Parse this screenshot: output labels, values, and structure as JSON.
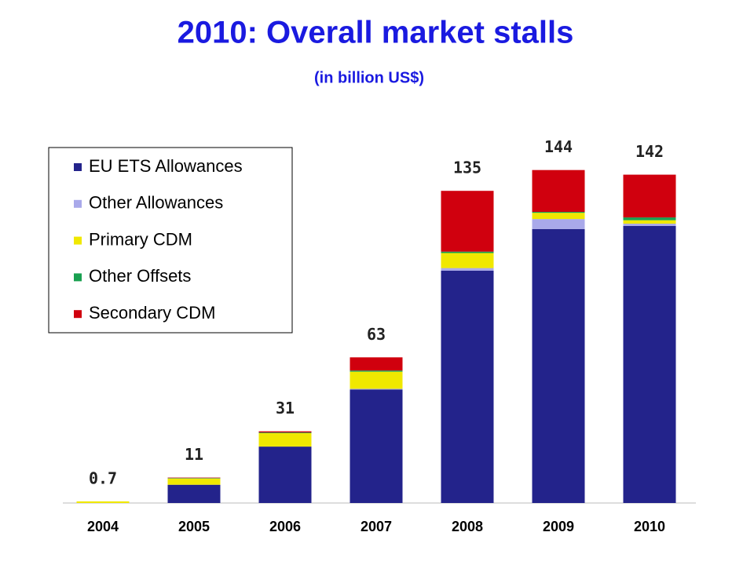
{
  "chart_data": {
    "type": "stacked_bar",
    "title": "2010: Overall market stalls",
    "subtitle": "(in billion US$)",
    "categories": [
      "2004",
      "2005",
      "2006",
      "2007",
      "2008",
      "2009",
      "2010"
    ],
    "series": [
      {
        "name": "EU ETS Allowances",
        "color": "#23238b",
        "values": [
          0,
          7.9,
          24.4,
          49.1,
          100.5,
          118.5,
          119.8
        ]
      },
      {
        "name": "Other Allowances",
        "color": "#a9a9ea",
        "values": [
          0,
          0,
          0,
          0.3,
          1.1,
          4.3,
          1.0
        ]
      },
      {
        "name": "Primary CDM",
        "color": "#f0e800",
        "values": [
          0.7,
          2.7,
          5.8,
          7.4,
          6.5,
          2.7,
          1.5
        ]
      },
      {
        "name": "Other Offsets",
        "color": "#19a050",
        "values": [
          0,
          0.2,
          0.3,
          0.5,
          0.6,
          0.4,
          1.2
        ]
      },
      {
        "name": "Secondary CDM",
        "color": "#d0000e",
        "values": [
          0,
          0.2,
          0.5,
          5.7,
          26.3,
          18.1,
          18.5
        ]
      }
    ],
    "totals": [
      0.7,
      11,
      31,
      63,
      135,
      144,
      142
    ],
    "ylim": [
      0,
      150
    ]
  }
}
